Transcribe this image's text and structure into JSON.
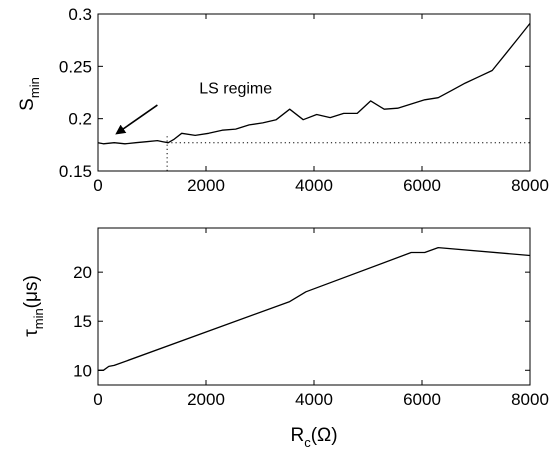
{
  "chart_data": [
    {
      "type": "line",
      "ylabel": {
        "main": "S",
        "sub": "min"
      },
      "xlabel": "",
      "xlim": [
        0,
        8000
      ],
      "ylim": [
        0.15,
        0.3
      ],
      "xticks": [
        0,
        2000,
        4000,
        6000,
        8000
      ],
      "xtick_labels": [
        "0",
        "2000",
        "4000",
        "6000",
        "8000"
      ],
      "yticks": [
        0.15,
        0.2,
        0.25,
        0.3
      ],
      "ytick_labels": [
        "0.15",
        "0.2",
        "0.25",
        "0.3"
      ],
      "grid": false,
      "series": [
        {
          "style": "solid",
          "x": [
            0,
            100,
            300,
            500,
            700,
            900,
            1100,
            1200,
            1300,
            1400,
            1550,
            1800,
            2050,
            2300,
            2550,
            2800,
            3050,
            3300,
            3550,
            3800,
            4050,
            4300,
            4550,
            4800,
            5050,
            5300,
            5550,
            5800,
            6050,
            6300,
            6550,
            6800,
            7050,
            7300,
            7550,
            7800,
            8000
          ],
          "y": [
            0.177,
            0.176,
            0.177,
            0.176,
            0.177,
            0.178,
            0.179,
            0.178,
            0.177,
            0.18,
            0.186,
            0.184,
            0.186,
            0.189,
            0.19,
            0.194,
            0.196,
            0.199,
            0.209,
            0.199,
            0.204,
            0.201,
            0.205,
            0.205,
            0.217,
            0.209,
            0.21,
            0.214,
            0.218,
            0.22,
            0.227,
            0.234,
            0.24,
            0.246,
            0.262,
            0.278,
            0.291
          ]
        },
        {
          "style": "dotted",
          "x": [
            1280,
            8000
          ],
          "y": [
            0.177,
            0.177
          ]
        }
      ],
      "vline": {
        "x": 1280,
        "y": [
          0.15,
          0.185
        ],
        "style": "dotted"
      },
      "annotations": [
        {
          "text": "LS regime",
          "x": 2550,
          "y": 0.224,
          "arrow_from": [
            1100,
            0.213
          ],
          "arrow_to": [
            350,
            0.186
          ]
        }
      ]
    },
    {
      "type": "line",
      "ylabel": {
        "main": "τ",
        "sub": "min",
        "rest": "(μs)"
      },
      "xlabel": {
        "main": "R",
        "sub": "c",
        "rest": "(Ω)"
      },
      "xlim": [
        0,
        8000
      ],
      "ylim": [
        8.5,
        24.5
      ],
      "xticks": [
        0,
        2000,
        4000,
        6000,
        8000
      ],
      "xtick_labels": [
        "0",
        "2000",
        "4000",
        "6000",
        "8000"
      ],
      "yticks": [
        10,
        15,
        20
      ],
      "ytick_labels": [
        "10",
        "15",
        "20"
      ],
      "grid": false,
      "series": [
        {
          "style": "solid",
          "x": [
            0,
            100,
            200,
            300,
            3550,
            3700,
            3850,
            5800,
            6050,
            6300,
            8000
          ],
          "y": [
            10.0,
            10.0,
            10.4,
            10.5,
            17.0,
            17.5,
            18.0,
            22.0,
            22.0,
            22.5,
            21.7
          ]
        }
      ]
    }
  ]
}
